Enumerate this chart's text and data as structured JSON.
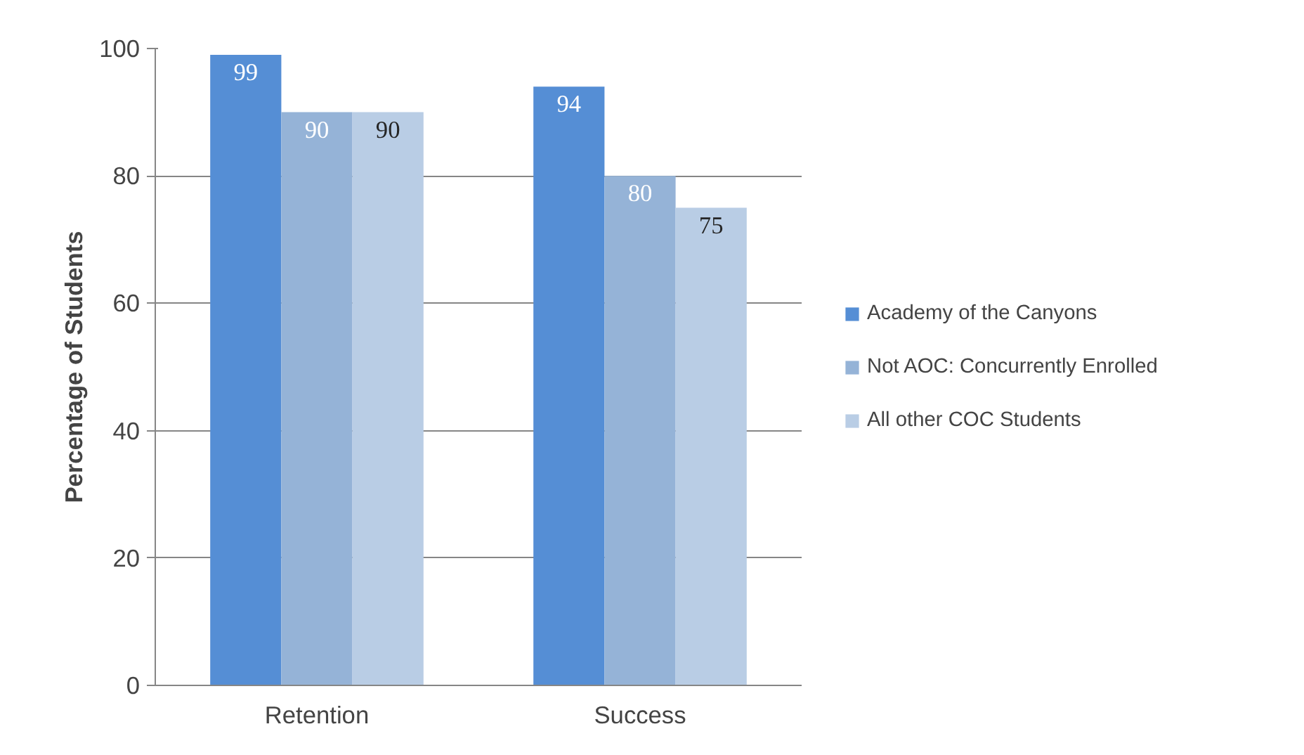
{
  "chart_data": {
    "type": "bar",
    "ylabel": "Percentage of Students",
    "categories": [
      "Retention",
      "Success"
    ],
    "series": [
      {
        "name": "Academy of the Canyons",
        "color": "#558ed5",
        "values": [
          99,
          94
        ]
      },
      {
        "name": "Not AOC: Concurrently Enrolled",
        "color": "#95b3d7",
        "values": [
          90,
          80
        ]
      },
      {
        "name": "All other COC Students",
        "color": "#b9cde5",
        "values": [
          90,
          75
        ]
      }
    ],
    "ylim": [
      0,
      100
    ],
    "yticks": [
      0,
      20,
      40,
      60,
      80,
      100
    ],
    "grid": "y",
    "legend": "right",
    "data_labels": true
  }
}
